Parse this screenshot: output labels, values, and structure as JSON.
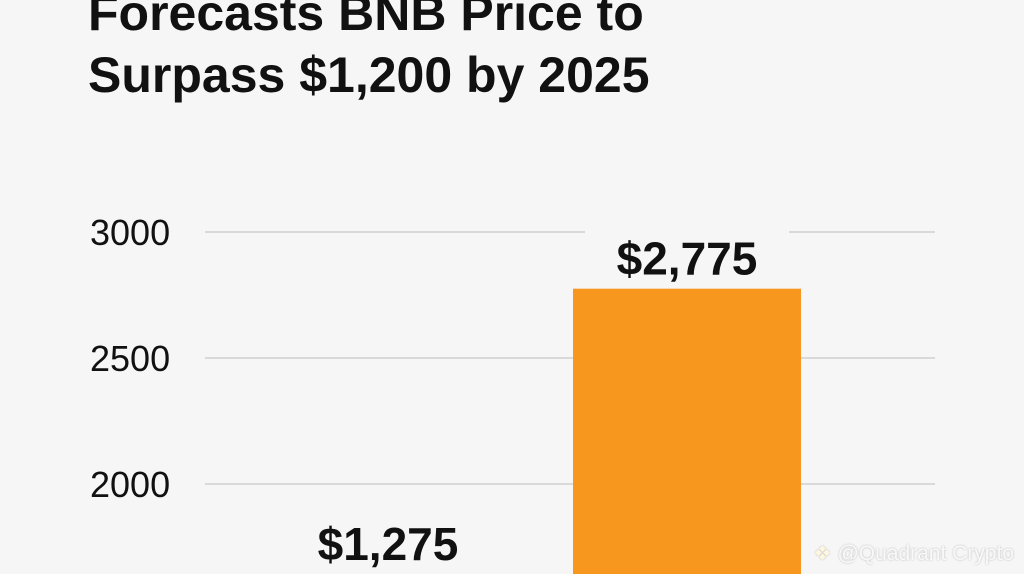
{
  "chart_data": {
    "type": "bar",
    "title_lines": [
      "Forecasts BNB Price to",
      "Surpass $1,200 by 2025"
    ],
    "categories": [
      "",
      ""
    ],
    "values": [
      1275,
      2775
    ],
    "data_labels": [
      "$1,275",
      "$2,775"
    ],
    "y_ticks": [
      2000,
      2500,
      3000
    ],
    "ylim": [
      1760,
      3500
    ],
    "grid": true,
    "colors": {
      "bar": "#f7971e",
      "grid": "#c8c8c8",
      "text": "#111111"
    }
  },
  "watermark": {
    "logo_icon": "binance-diamond-icon",
    "text": "@Quadrant Crypto"
  }
}
